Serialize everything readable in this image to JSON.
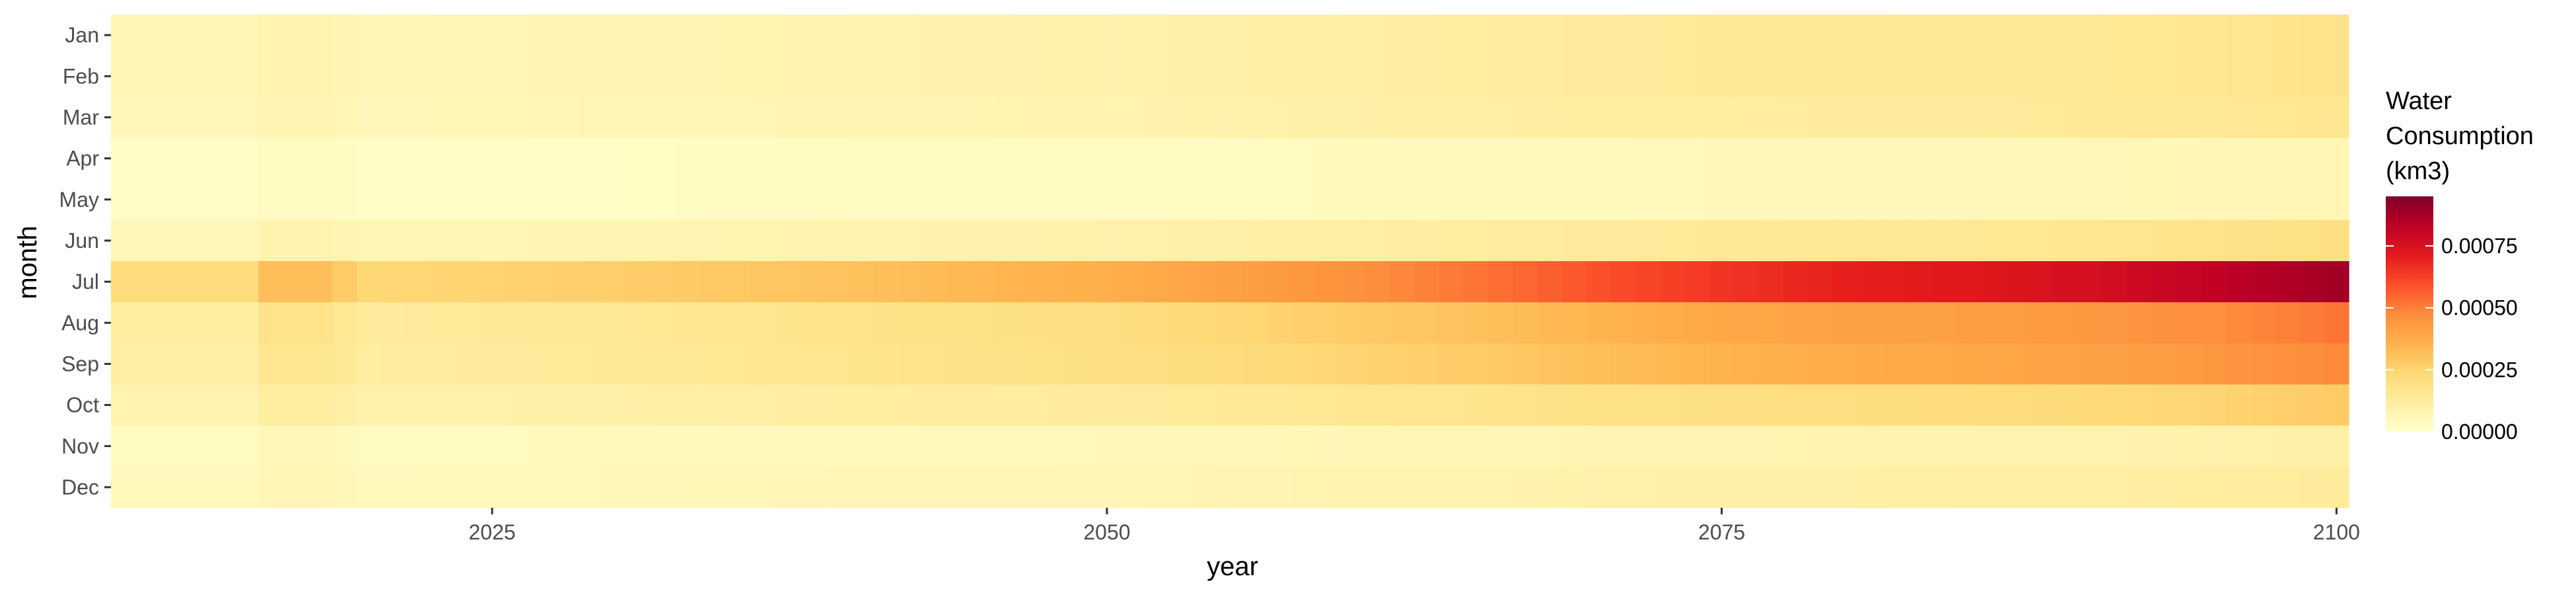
{
  "chart_data": {
    "type": "heatmap",
    "title": "",
    "xlabel": "year",
    "ylabel": "month",
    "x_range": [
      2010,
      2100
    ],
    "x_ticks": [
      2025,
      2050,
      2075,
      2100
    ],
    "months": [
      "Jan",
      "Feb",
      "Mar",
      "Apr",
      "May",
      "Jun",
      "Jul",
      "Aug",
      "Sep",
      "Oct",
      "Nov",
      "Dec"
    ],
    "value_anchor_years": [
      2010,
      2015,
      2016,
      2018,
      2020,
      2030,
      2040,
      2050,
      2055,
      2060,
      2065,
      2070,
      2075,
      2080,
      2085,
      2090,
      2095,
      2100
    ],
    "month_values": {
      "Jan": [
        6e-05,
        6e-05,
        8e-05,
        8e-05,
        6e-05,
        7e-05,
        8e-05,
        9e-05,
        0.0001,
        0.00011,
        0.00012,
        0.00013,
        0.00014,
        0.00014,
        0.00015,
        0.00015,
        0.00016,
        0.00018
      ],
      "Feb": [
        6e-05,
        6e-05,
        8e-05,
        8e-05,
        6e-05,
        7e-05,
        8e-05,
        9e-05,
        0.0001,
        0.00011,
        0.00012,
        0.00013,
        0.00014,
        0.00014,
        0.00015,
        0.00015,
        0.00016,
        0.00018
      ],
      "Mar": [
        5e-05,
        5e-05,
        7e-05,
        7e-05,
        5e-05,
        6e-05,
        7e-05,
        8e-05,
        9e-05,
        0.0001,
        0.00011,
        0.00012,
        0.00012,
        0.00013,
        0.00013,
        0.00014,
        0.00015,
        0.00016
      ],
      "Apr": [
        2e-05,
        2e-05,
        3e-05,
        3e-05,
        2e-05,
        2e-05,
        3e-05,
        3e-05,
        3e-05,
        4e-05,
        4e-05,
        4e-05,
        5e-05,
        5e-05,
        5e-05,
        5e-05,
        6e-05,
        6e-05
      ],
      "May": [
        2e-05,
        2e-05,
        3e-05,
        3e-05,
        2e-05,
        2e-05,
        3e-05,
        3e-05,
        3e-05,
        4e-05,
        4e-05,
        4e-05,
        5e-05,
        5e-05,
        5e-05,
        5e-05,
        6e-05,
        6e-05
      ],
      "Jun": [
        5e-05,
        5e-05,
        8e-05,
        8e-05,
        6e-05,
        7e-05,
        8e-05,
        9e-05,
        0.0001,
        0.00011,
        0.00012,
        0.00013,
        0.00014,
        0.00015,
        0.00015,
        0.00016,
        0.00018,
        0.0002
      ],
      "Jul": [
        0.00022,
        0.00022,
        0.00032,
        0.00032,
        0.00024,
        0.00027,
        0.00031,
        0.00037,
        0.00041,
        0.00046,
        0.00052,
        0.00059,
        0.00065,
        0.0007,
        0.00072,
        0.00076,
        0.00082,
        0.00088
      ],
      "Aug": [
        0.00012,
        0.00012,
        0.00018,
        0.00018,
        0.00013,
        0.00015,
        0.00018,
        0.00021,
        0.00024,
        0.00028,
        0.00031,
        0.00035,
        0.00039,
        0.00041,
        0.00042,
        0.00044,
        0.00047,
        0.00052
      ],
      "Sep": [
        0.00011,
        0.00011,
        0.00016,
        0.00016,
        0.00012,
        0.00014,
        0.00017,
        0.0002,
        0.00022,
        0.00025,
        0.00028,
        0.00032,
        0.00035,
        0.00038,
        0.00039,
        0.00041,
        0.00044,
        0.00048
      ],
      "Oct": [
        8e-05,
        8e-05,
        0.00012,
        0.00012,
        9e-05,
        0.0001,
        0.00012,
        0.00013,
        0.00014,
        0.00016,
        0.00017,
        0.00019,
        0.0002,
        0.00021,
        0.00022,
        0.00023,
        0.00025,
        0.00028
      ],
      "Nov": [
        3e-05,
        3e-05,
        5e-05,
        5e-05,
        3e-05,
        4e-05,
        4e-05,
        5e-05,
        5e-05,
        6e-05,
        6e-05,
        7e-05,
        7e-05,
        8e-05,
        8e-05,
        8e-05,
        9e-05,
        0.0001
      ],
      "Dec": [
        4e-05,
        4e-05,
        6e-05,
        6e-05,
        4e-05,
        5e-05,
        6e-05,
        6e-05,
        7e-05,
        8e-05,
        8e-05,
        9e-05,
        0.0001,
        0.0001,
        0.00011,
        0.00011,
        0.00012,
        0.00013
      ]
    },
    "colorbar": {
      "title_lines": [
        "Water",
        "Consumption",
        "(km3)"
      ],
      "range": [
        0,
        0.00095
      ],
      "ticks": [
        0,
        0.00025,
        0.0005,
        0.00075
      ],
      "tick_labels": [
        "0.00000",
        "0.00025",
        "0.00050",
        "0.00075"
      ],
      "palette": "YlOrRd",
      "stops": [
        "#ffffcc",
        "#ffeda0",
        "#fed976",
        "#feb24c",
        "#fd8d3c",
        "#fc4e2a",
        "#e31a1c",
        "#bd0026",
        "#800026"
      ]
    },
    "grid": false,
    "legend_position": "right"
  },
  "colors": {
    "panel_background": "#ffffff",
    "tick_text": "#4d4d4d",
    "tick_mark": "#333333"
  }
}
